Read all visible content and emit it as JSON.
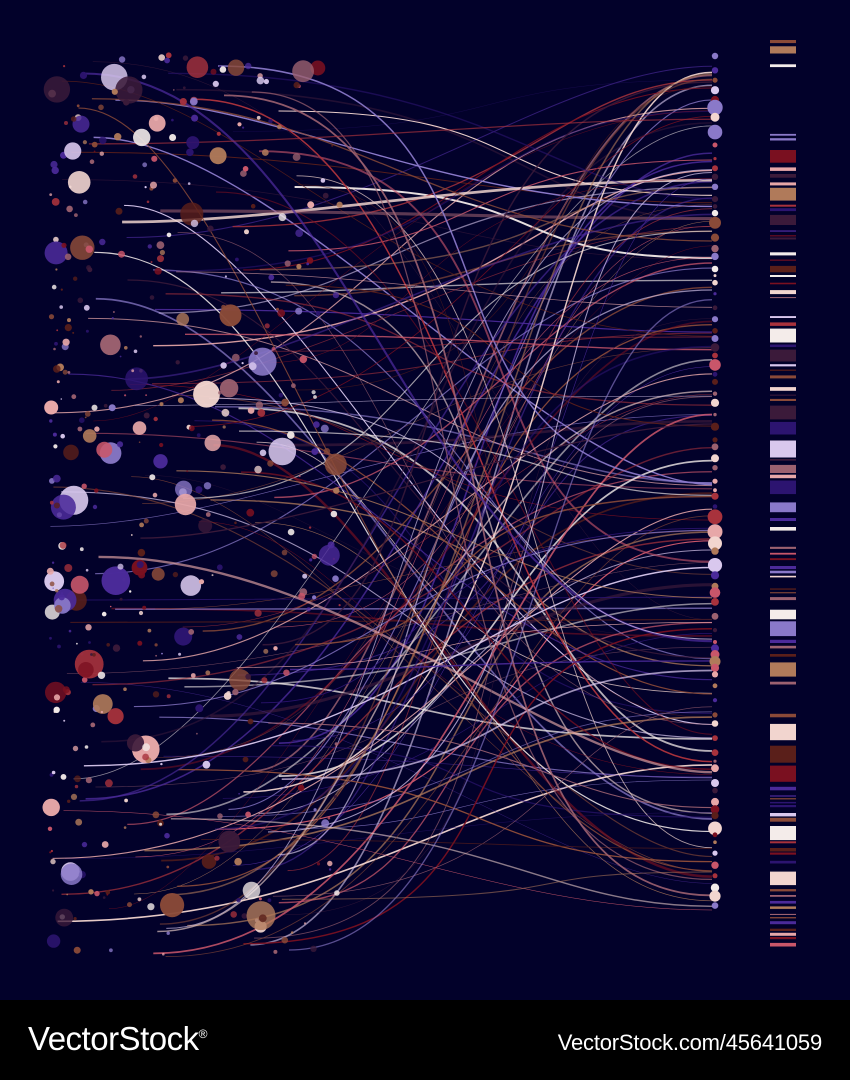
{
  "artwork": {
    "background": "#02012a",
    "palette": [
      "#7a1020",
      "#a8323c",
      "#c9566a",
      "#e7a7a8",
      "#f2d5cf",
      "#d9c8ee",
      "#8a79c9",
      "#4b2a9a",
      "#2c1470",
      "#5a1f1a",
      "#8a4a38",
      "#b07a5a",
      "#f4ecea",
      "#3b1a3a",
      "#9c6170"
    ]
  },
  "footer": {
    "brand": "VectorStock",
    "registered_mark": "®",
    "credit": "VectorStock.com/45641059"
  }
}
